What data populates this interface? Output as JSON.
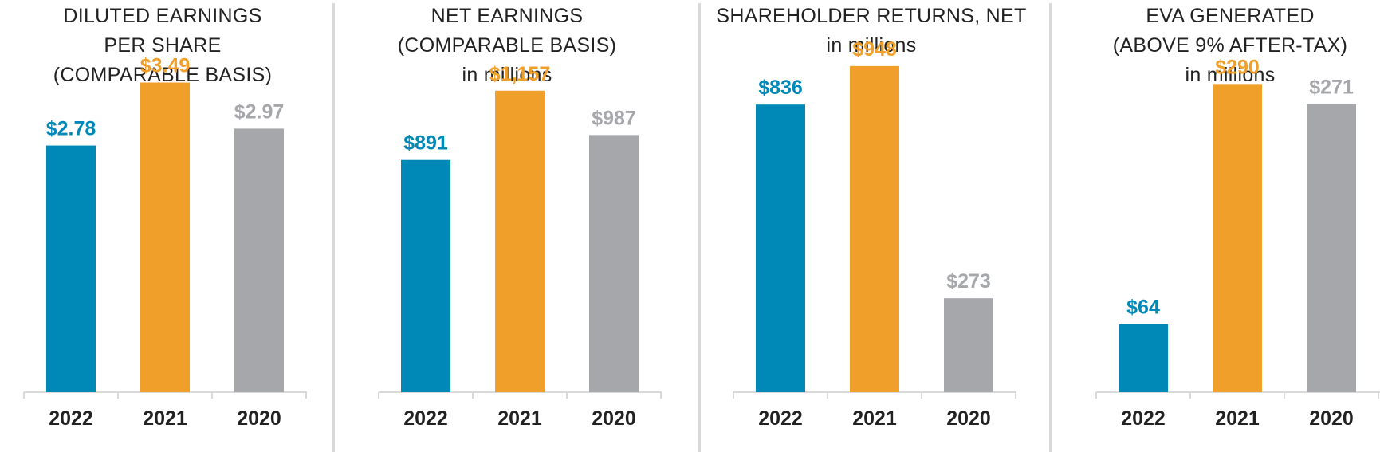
{
  "colors": {
    "y2022": "#0089b7",
    "y2021": "#f09f2a",
    "y2020": "#a6a7ab",
    "axis": "#d9d9d9",
    "text": "#222222"
  },
  "chart_data": [
    {
      "type": "bar",
      "title_lines": [
        "DILUTED EARNINGS",
        "PER SHARE",
        "(COMPARABLE BASIS)"
      ],
      "categories": [
        "2022",
        "2021",
        "2020"
      ],
      "values": [
        2.78,
        3.49,
        2.97
      ],
      "labels": [
        "$2.78",
        "$3.49",
        "$2.97"
      ],
      "ylim": [
        0,
        4.42
      ]
    },
    {
      "type": "bar",
      "title_lines": [
        "NET EARNINGS",
        "(COMPARABLE BASIS)",
        "in millions"
      ],
      "categories": [
        "2022",
        "2021",
        "2020"
      ],
      "values": [
        891,
        1157,
        987
      ],
      "labels": [
        "$891",
        "$1,157",
        "$987"
      ],
      "ylim": [
        0,
        1505
      ]
    },
    {
      "type": "bar",
      "title_lines": [
        "SHAREHOLDER RETURNS, NET",
        "in millions"
      ],
      "categories": [
        "2022",
        "2021",
        "2020"
      ],
      "values": [
        836,
        948,
        273
      ],
      "labels": [
        "$836",
        "$948",
        "$273"
      ],
      "ylim": [
        0,
        1140
      ]
    },
    {
      "type": "bar",
      "title_lines": [
        "EVA GENERATED",
        "(ABOVE 9% AFTER-TAX)",
        "in millions"
      ],
      "categories": [
        "2022",
        "2021",
        "2020"
      ],
      "values": [
        64,
        290,
        271
      ],
      "labels": [
        "$64",
        "$290",
        "$271"
      ],
      "ylim": [
        0,
        369
      ]
    }
  ]
}
